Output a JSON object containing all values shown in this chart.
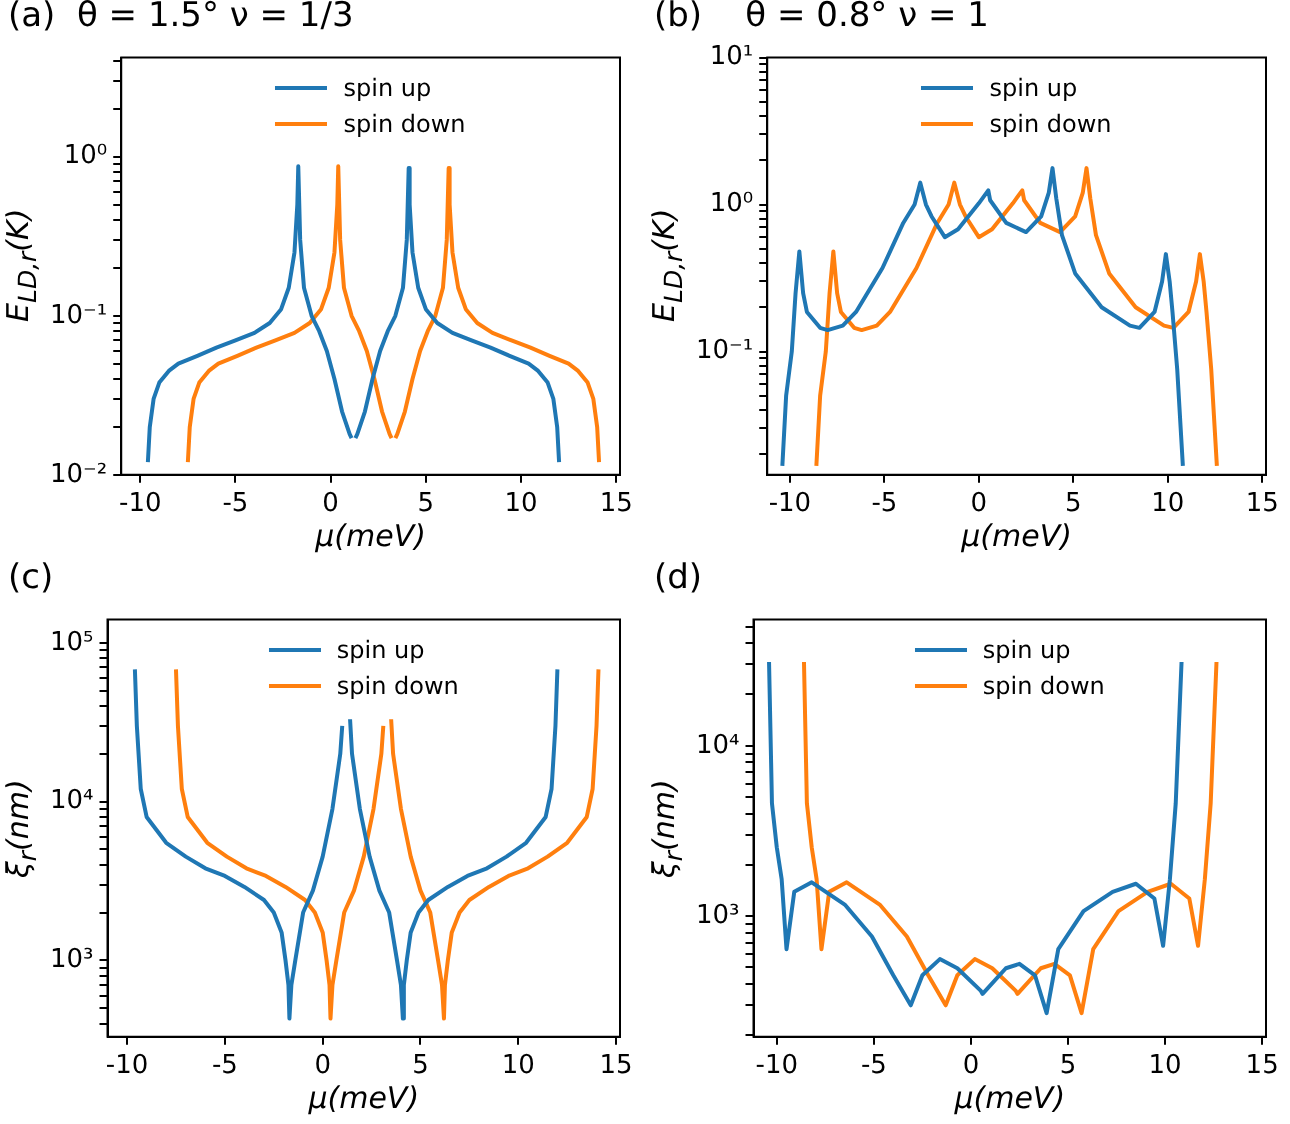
{
  "chart_data": [
    {
      "type": "line",
      "title": "(a)  θ = 1.5° ν = 1/3",
      "xlabel": "μ(meV)",
      "ylabel": "E$_{LD,r}$(K)",
      "log": "y",
      "marker": "none",
      "legend": "top",
      "xlim": [
        -11,
        15.2
      ],
      "xticks": [
        -10,
        -5,
        0,
        5,
        10,
        15
      ],
      "ylim": [
        0.01,
        4.2
      ],
      "yticks": [
        {
          "value": 0.01,
          "label": "10⁻²"
        },
        {
          "value": 0.02,
          "label": null
        },
        {
          "value": 0.03,
          "label": null
        },
        {
          "value": 0.04,
          "label": null
        },
        {
          "value": 0.05,
          "label": null
        },
        {
          "value": 0.06,
          "label": null
        },
        {
          "value": 0.07,
          "label": null
        },
        {
          "value": 0.08,
          "label": null
        },
        {
          "value": 0.09,
          "label": null
        },
        {
          "value": 0.1,
          "label": "10⁻¹"
        },
        {
          "value": 0.2,
          "label": null
        },
        {
          "value": 0.3,
          "label": null
        },
        {
          "value": 0.4,
          "label": null
        },
        {
          "value": 0.5,
          "label": null
        },
        {
          "value": 0.6,
          "label": null
        },
        {
          "value": 0.7,
          "label": null
        },
        {
          "value": 0.8,
          "label": null
        },
        {
          "value": 0.9,
          "label": null
        },
        {
          "value": 1,
          "label": "10⁰"
        },
        {
          "value": 2,
          "label": null
        },
        {
          "value": 3,
          "label": null
        },
        {
          "value": 4,
          "label": null
        }
      ],
      "series": [
        {
          "name": "spin up",
          "color": "#1f77b4",
          "x": [
            -9.6,
            -9.5,
            -9.3,
            -9.0,
            -8.5,
            -8,
            -7,
            -6,
            -5,
            -4,
            -3.2,
            -2.6,
            -2.2,
            -1.9,
            -1.75,
            -1.7,
            -1.6,
            -1.4,
            -1.0,
            -0.6,
            -0.2,
            0.2,
            0.6,
            1.0,
            1.1,
            1.2,
            1.3,
            1.4,
            1.8,
            2.2,
            2.6,
            3.0,
            3.4,
            3.8,
            4.0,
            4.1,
            4.15,
            4.3,
            4.6,
            5.0,
            5.6,
            6.4,
            7.4,
            8.4,
            9.4,
            10.4,
            10.9,
            11.4,
            11.7,
            11.9,
            12.0
          ],
          "values": [
            0.012,
            0.02,
            0.03,
            0.038,
            0.045,
            0.05,
            0.056,
            0.063,
            0.07,
            0.078,
            0.09,
            0.11,
            0.15,
            0.25,
            0.5,
            0.87,
            0.3,
            0.15,
            0.1,
            0.08,
            0.06,
            0.04,
            0.025,
            0.018,
            0.017,
            null,
            0.017,
            0.018,
            0.025,
            0.04,
            0.06,
            0.08,
            0.1,
            0.15,
            0.3,
            0.85,
            0.5,
            0.25,
            0.15,
            0.11,
            0.09,
            0.078,
            0.07,
            0.063,
            0.056,
            0.05,
            0.045,
            0.038,
            0.03,
            0.02,
            0.012
          ]
        },
        {
          "name": "spin down",
          "color": "#ff7f0e",
          "x": [
            -7.5,
            -7.4,
            -7.2,
            -6.9,
            -6.4,
            -5.9,
            -4.9,
            -3.9,
            -2.9,
            -1.9,
            -1.1,
            -0.5,
            -0.1,
            0.2,
            0.35,
            0.4,
            0.5,
            0.7,
            1.1,
            1.5,
            1.9,
            2.3,
            2.7,
            3.1,
            3.2,
            3.3,
            3.4,
            3.5,
            3.9,
            4.3,
            4.7,
            5.1,
            5.5,
            5.9,
            6.1,
            6.2,
            6.25,
            6.4,
            6.7,
            7.1,
            7.7,
            8.5,
            9.5,
            10.5,
            11.5,
            12.5,
            13.0,
            13.5,
            13.8,
            14.0,
            14.1
          ],
          "values": [
            0.012,
            0.02,
            0.03,
            0.038,
            0.045,
            0.05,
            0.056,
            0.063,
            0.07,
            0.078,
            0.09,
            0.11,
            0.15,
            0.25,
            0.5,
            0.87,
            0.3,
            0.15,
            0.1,
            0.08,
            0.06,
            0.04,
            0.025,
            0.018,
            0.017,
            null,
            0.017,
            0.018,
            0.025,
            0.04,
            0.06,
            0.08,
            0.1,
            0.15,
            0.3,
            0.85,
            0.5,
            0.25,
            0.15,
            0.11,
            0.09,
            0.078,
            0.07,
            0.063,
            0.056,
            0.05,
            0.045,
            0.038,
            0.03,
            0.02,
            0.012
          ]
        }
      ]
    },
    {
      "type": "line",
      "title": "(b)    θ = 0.8° ν = 1",
      "xlabel": "μ(meV)",
      "ylabel": "E$_{LD,r}$(K)",
      "log": "y",
      "marker": "none",
      "legend": "top",
      "xlim": [
        -11.2,
        15.2
      ],
      "xticks": [
        -10,
        -5,
        0,
        5,
        10,
        15
      ],
      "ylim": [
        0.0145,
        10
      ],
      "yticks": [
        {
          "value": 0.02,
          "label": null
        },
        {
          "value": 0.03,
          "label": null
        },
        {
          "value": 0.04,
          "label": null
        },
        {
          "value": 0.05,
          "label": null
        },
        {
          "value": 0.06,
          "label": null
        },
        {
          "value": 0.07,
          "label": null
        },
        {
          "value": 0.08,
          "label": null
        },
        {
          "value": 0.09,
          "label": null
        },
        {
          "value": 0.1,
          "label": "10⁻¹"
        },
        {
          "value": 0.2,
          "label": null
        },
        {
          "value": 0.3,
          "label": null
        },
        {
          "value": 0.4,
          "label": null
        },
        {
          "value": 0.5,
          "label": null
        },
        {
          "value": 0.6,
          "label": null
        },
        {
          "value": 0.7,
          "label": null
        },
        {
          "value": 0.8,
          "label": null
        },
        {
          "value": 0.9,
          "label": null
        },
        {
          "value": 1,
          "label": "10⁰"
        },
        {
          "value": 2,
          "label": null
        },
        {
          "value": 3,
          "label": null
        },
        {
          "value": 4,
          "label": null
        },
        {
          "value": 5,
          "label": null
        },
        {
          "value": 6,
          "label": null
        },
        {
          "value": 7,
          "label": null
        },
        {
          "value": 8,
          "label": null
        },
        {
          "value": 9,
          "label": null
        },
        {
          "value": 10,
          "label": "10¹"
        }
      ],
      "series": [
        {
          "name": "spin up",
          "color": "#1f77b4",
          "x": [
            -10.4,
            -10.2,
            -9.9,
            -9.7,
            -9.5,
            -9.3,
            -9.1,
            -8.4,
            -8.0,
            -7.2,
            -6.5,
            -5.1,
            -4.0,
            -3.4,
            -3.1,
            -2.8,
            -2.5,
            -1.8,
            -1.1,
            0,
            0.5,
            0.6,
            1.45,
            2.5,
            3.3,
            3.7,
            3.9,
            4.1,
            4.4,
            5.1,
            6.5,
            8.0,
            8.5,
            9.3,
            9.7,
            9.9,
            10.1,
            10.25,
            10.5,
            10.8
          ],
          "values": [
            0.0167,
            0.05,
            0.1,
            0.25,
            0.48,
            0.25,
            0.186,
            0.145,
            0.14,
            0.15,
            0.186,
            0.37,
            0.75,
            1.0,
            1.41,
            1.0,
            0.83,
            0.6,
            0.68,
            1.02,
            1.25,
            1.07,
            0.75,
            0.65,
            0.83,
            1.2,
            1.77,
            1.1,
            0.62,
            0.34,
            0.2,
            0.15,
            0.145,
            0.186,
            0.3,
            0.46,
            0.3,
            0.186,
            0.076,
            0.0167
          ]
        },
        {
          "name": "spin down",
          "color": "#ff7f0e",
          "x": [
            -8.6,
            -8.4,
            -8.1,
            -7.9,
            -7.7,
            -7.5,
            -7.3,
            -6.6,
            -6.2,
            -5.4,
            -4.7,
            -3.3,
            -2.2,
            -1.6,
            -1.3,
            -1.0,
            -0.7,
            0,
            0.7,
            1.8,
            2.3,
            2.4,
            3.25,
            4.3,
            5.1,
            5.5,
            5.7,
            5.9,
            6.2,
            6.9,
            8.3,
            9.8,
            10.3,
            11.1,
            11.5,
            11.7,
            11.9,
            12.05,
            12.3,
            12.6
          ],
          "values": [
            0.0167,
            0.05,
            0.1,
            0.25,
            0.48,
            0.25,
            0.186,
            0.145,
            0.14,
            0.15,
            0.186,
            0.37,
            0.75,
            1.0,
            1.41,
            1.0,
            0.83,
            0.6,
            0.68,
            1.02,
            1.25,
            1.07,
            0.75,
            0.65,
            0.83,
            1.2,
            1.77,
            1.1,
            0.62,
            0.34,
            0.2,
            0.15,
            0.145,
            0.186,
            0.3,
            0.46,
            0.3,
            0.186,
            0.076,
            0.0167
          ]
        }
      ]
    },
    {
      "type": "line",
      "title": "(c)",
      "xlabel": "μ(meV)",
      "ylabel": "ξ$_{r}$(nm)",
      "log": "y",
      "marker": "none",
      "legend": "top",
      "xlim": [
        -11,
        15.2
      ],
      "xticks": [
        -10,
        -5,
        0,
        5,
        10,
        15
      ],
      "ylim": [
        330,
        140000
      ],
      "yticks": [
        {
          "value": 400,
          "label": null
        },
        {
          "value": 500,
          "label": null
        },
        {
          "value": 600,
          "label": null
        },
        {
          "value": 700,
          "label": null
        },
        {
          "value": 800,
          "label": null
        },
        {
          "value": 900,
          "label": null
        },
        {
          "value": 1000,
          "label": "10³"
        },
        {
          "value": 2000,
          "label": null
        },
        {
          "value": 3000,
          "label": null
        },
        {
          "value": 4000,
          "label": null
        },
        {
          "value": 5000,
          "label": null
        },
        {
          "value": 6000,
          "label": null
        },
        {
          "value": 7000,
          "label": null
        },
        {
          "value": 8000,
          "label": null
        },
        {
          "value": 9000,
          "label": null
        },
        {
          "value": 10000,
          "label": "10⁴"
        },
        {
          "value": 20000,
          "label": null
        },
        {
          "value": 30000,
          "label": null
        },
        {
          "value": 40000,
          "label": null
        },
        {
          "value": 50000,
          "label": null
        },
        {
          "value": 60000,
          "label": null
        },
        {
          "value": 70000,
          "label": null
        },
        {
          "value": 80000,
          "label": null
        },
        {
          "value": 90000,
          "label": null
        },
        {
          "value": 100000,
          "label": "10⁵"
        }
      ],
      "series": [
        {
          "name": "spin up",
          "color": "#1f77b4",
          "x": [
            -9.6,
            -9.5,
            -9.3,
            -9.0,
            -8,
            -7,
            -6,
            -5,
            -4,
            -3,
            -2.5,
            -2.1,
            -1.9,
            -1.75,
            -1.7,
            -1.6,
            -1.4,
            -1.0,
            -0.5,
            0,
            0.5,
            0.9,
            1.0,
            1.2,
            1.4,
            1.5,
            1.9,
            2.4,
            2.9,
            3.4,
            3.8,
            4.0,
            4.1,
            4.15,
            4.3,
            4.5,
            4.9,
            5.4,
            6.4,
            7.4,
            8.4,
            9.4,
            10.4,
            11.4,
            11.7,
            11.9,
            12.0
          ],
          "values": [
            68000,
            30000,
            12000,
            8000,
            5500,
            4500,
            3800,
            3400,
            2900,
            2400,
            2000,
            1500,
            1000,
            700,
            430,
            700,
            1000,
            2000,
            2750,
            4500,
            9000,
            20000,
            30000,
            null,
            33000,
            20000,
            9000,
            4500,
            2750,
            2000,
            1000,
            700,
            430,
            700,
            1000,
            1500,
            2000,
            2400,
            2900,
            3400,
            3800,
            4500,
            5500,
            8000,
            12000,
            30000,
            68000
          ]
        },
        {
          "name": "spin down",
          "color": "#ff7f0e",
          "x": [
            -7.5,
            -7.4,
            -7.2,
            -6.9,
            -5.9,
            -4.9,
            -3.9,
            -2.9,
            -1.9,
            -0.9,
            -0.4,
            0,
            0.2,
            0.35,
            0.4,
            0.5,
            0.7,
            1.1,
            1.6,
            2.1,
            2.6,
            3.0,
            3.1,
            3.3,
            3.5,
            3.6,
            4.0,
            4.5,
            5.0,
            5.5,
            5.9,
            6.1,
            6.2,
            6.25,
            6.4,
            6.6,
            7.0,
            7.5,
            8.5,
            9.5,
            10.5,
            11.5,
            12.5,
            13.5,
            13.8,
            14.0,
            14.1
          ],
          "values": [
            68000,
            30000,
            12000,
            8000,
            5500,
            4500,
            3800,
            3400,
            2900,
            2400,
            2000,
            1500,
            1000,
            700,
            430,
            700,
            1000,
            2000,
            2750,
            4500,
            9000,
            20000,
            30000,
            null,
            33000,
            20000,
            9000,
            4500,
            2750,
            2000,
            1000,
            700,
            430,
            700,
            1000,
            1500,
            2000,
            2400,
            2900,
            3400,
            3800,
            4500,
            5500,
            8000,
            12000,
            30000,
            68000
          ]
        }
      ]
    },
    {
      "type": "line",
      "title": "(d)",
      "xlabel": "μ(meV)",
      "ylabel": "ξ$_{r}$(nm)",
      "log": "y",
      "marker": "none",
      "legend": "top",
      "xlim": [
        -11.2,
        15.2
      ],
      "xticks": [
        -10,
        -5,
        0,
        5,
        10,
        15
      ],
      "ylim": [
        196,
        55000
      ],
      "yticks": [
        {
          "value": 200,
          "label": null
        },
        {
          "value": 300,
          "label": null
        },
        {
          "value": 400,
          "label": null
        },
        {
          "value": 500,
          "label": null
        },
        {
          "value": 600,
          "label": null
        },
        {
          "value": 700,
          "label": null
        },
        {
          "value": 800,
          "label": null
        },
        {
          "value": 900,
          "label": null
        },
        {
          "value": 1000,
          "label": "10³"
        },
        {
          "value": 2000,
          "label": null
        },
        {
          "value": 3000,
          "label": null
        },
        {
          "value": 4000,
          "label": null
        },
        {
          "value": 5000,
          "label": null
        },
        {
          "value": 6000,
          "label": null
        },
        {
          "value": 7000,
          "label": null
        },
        {
          "value": 8000,
          "label": null
        },
        {
          "value": 9000,
          "label": null
        },
        {
          "value": 10000,
          "label": "10⁴"
        },
        {
          "value": 20000,
          "label": null
        },
        {
          "value": 30000,
          "label": null
        },
        {
          "value": 40000,
          "label": null
        },
        {
          "value": 50000,
          "label": null
        }
      ],
      "series": [
        {
          "name": "spin up",
          "color": "#1f77b4",
          "x": [
            -10.4,
            -10.25,
            -10.0,
            -9.75,
            -9.5,
            -9.1,
            -8.2,
            -6.5,
            -5.1,
            -4.0,
            -3.1,
            -2.5,
            -1.6,
            -0.7,
            0.5,
            0.6,
            1.8,
            2.5,
            3.3,
            3.9,
            4.5,
            5.8,
            7.3,
            8.5,
            9.45,
            9.9,
            10.25,
            10.55,
            10.85
          ],
          "values": [
            31000,
            4600,
            2530,
            1650,
            640,
            1390,
            1580,
            1170,
            760,
            450,
            300,
            450,
            560,
            495,
            366,
            350,
            495,
            525,
            450,
            270,
            640,
            1070,
            1390,
            1550,
            1270,
            670,
            1650,
            4600,
            31000
          ]
        },
        {
          "name": "spin down",
          "color": "#ff7f0e",
          "x": [
            -8.6,
            -8.45,
            -8.2,
            -7.95,
            -7.7,
            -7.3,
            -6.4,
            -4.7,
            -3.3,
            -2.2,
            -1.3,
            -0.7,
            0.2,
            1.1,
            2.3,
            2.4,
            3.6,
            4.3,
            5.1,
            5.7,
            6.3,
            7.6,
            9.1,
            10.3,
            11.25,
            11.7,
            12.05,
            12.35,
            12.65
          ],
          "values": [
            31000,
            4600,
            2530,
            1650,
            640,
            1390,
            1580,
            1170,
            760,
            450,
            300,
            450,
            560,
            495,
            366,
            350,
            495,
            525,
            450,
            270,
            640,
            1070,
            1390,
            1550,
            1270,
            670,
            1650,
            4600,
            31000
          ]
        }
      ]
    }
  ]
}
